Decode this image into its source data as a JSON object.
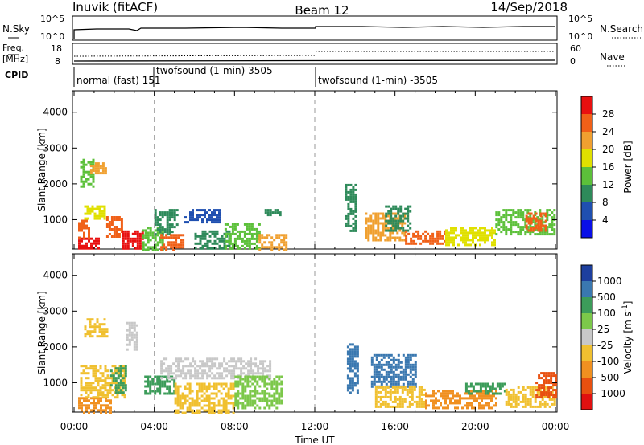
{
  "header": {
    "station": "Inuvik  (fitACF)",
    "beam": "Beam 12",
    "date": "14/Sep/2018"
  },
  "strips": {
    "nsky_label": "N.Sky",
    "nsky_ticks": [
      "10^5",
      "10^0"
    ],
    "nsearch_label": "N.Search",
    "nsearch_ticks": [
      "10^5",
      "10^0"
    ],
    "freq_label": "Freq.",
    "freq_unit": "[MHz]",
    "freq_ticks": [
      "18",
      "8"
    ],
    "nave_label": "Nave",
    "nave_ticks": [
      "60",
      "0"
    ],
    "cpid_label": "CPID"
  },
  "cpid_segments": [
    {
      "label": "normal (fast) 151",
      "start": "00:00",
      "end": "03:55"
    },
    {
      "label": "twofsound (1-min) 3505",
      "start": "03:55",
      "end": "11:55"
    },
    {
      "label": "twofsound (1-min) -3505",
      "start": "11:55",
      "end": "24:00"
    }
  ],
  "chart_data": [
    {
      "type": "heatmap",
      "title": "",
      "xlabel": "Time UT",
      "ylabel": "Slant Range [km]",
      "xlim": [
        0,
        24
      ],
      "ylim": [
        180,
        4600
      ],
      "x_tick_labels": [
        "00:00",
        "04:00",
        "08:00",
        "12:00",
        "16:00",
        "20:00",
        "00:00"
      ],
      "y_tick_labels": [
        "1000",
        "2000",
        "3000",
        "4000"
      ],
      "colorbar": {
        "label": "Power [dB]",
        "ticks": [
          "4",
          "8",
          "12",
          "16",
          "20",
          "24",
          "28"
        ],
        "colors": [
          "#0a10e8",
          "#1f4fb0",
          "#2e8a5a",
          "#5cc03a",
          "#e0e000",
          "#f0a030",
          "#f06018",
          "#e81010"
        ]
      },
      "regions": [
        {
          "t": [
            0.2,
            1.2
          ],
          "r": [
            180,
            500
          ],
          "level": 28
        },
        {
          "t": [
            0.2,
            0.8
          ],
          "r": [
            500,
            1000
          ],
          "level": 24
        },
        {
          "t": [
            0.5,
            1.5
          ],
          "r": [
            1000,
            1400
          ],
          "level": 16
        },
        {
          "t": [
            0.3,
            1.0
          ],
          "r": [
            1900,
            2700
          ],
          "level": 12
        },
        {
          "t": [
            0.8,
            1.6
          ],
          "r": [
            2300,
            2600
          ],
          "level": 20
        },
        {
          "t": [
            1.6,
            2.4
          ],
          "r": [
            500,
            1100
          ],
          "level": 24
        },
        {
          "t": [
            2.4,
            3.4
          ],
          "r": [
            180,
            700
          ],
          "level": 28
        },
        {
          "t": [
            3.4,
            4.4
          ],
          "r": [
            180,
            800
          ],
          "level": 12
        },
        {
          "t": [
            4.0,
            5.2
          ],
          "r": [
            600,
            1300
          ],
          "level": 8
        },
        {
          "t": [
            4.3,
            5.5
          ],
          "r": [
            180,
            600
          ],
          "level": 24
        },
        {
          "t": [
            5.5,
            7.3
          ],
          "r": [
            900,
            1300
          ],
          "level": 4
        },
        {
          "t": [
            6.0,
            7.8
          ],
          "r": [
            180,
            700
          ],
          "level": 8
        },
        {
          "t": [
            7.5,
            9.2
          ],
          "r": [
            180,
            900
          ],
          "level": 12
        },
        {
          "t": [
            9.2,
            10.6
          ],
          "r": [
            180,
            600
          ],
          "level": 20
        },
        {
          "t": [
            9.5,
            10.3
          ],
          "r": [
            1100,
            1300
          ],
          "level": 8
        },
        {
          "t": [
            13.5,
            14.1
          ],
          "r": [
            700,
            2000
          ],
          "level": 8
        },
        {
          "t": [
            14.5,
            16.5
          ],
          "r": [
            400,
            1200
          ],
          "level": 20
        },
        {
          "t": [
            15.5,
            16.8
          ],
          "r": [
            700,
            1400
          ],
          "level": 8
        },
        {
          "t": [
            16.5,
            18.5
          ],
          "r": [
            300,
            700
          ],
          "level": 24
        },
        {
          "t": [
            18.5,
            21.0
          ],
          "r": [
            300,
            800
          ],
          "level": 16
        },
        {
          "t": [
            21.0,
            24.0
          ],
          "r": [
            600,
            1300
          ],
          "level": 12
        },
        {
          "t": [
            22.5,
            23.5
          ],
          "r": [
            700,
            1200
          ],
          "level": 24
        }
      ]
    },
    {
      "type": "heatmap",
      "title": "",
      "xlabel": "Time UT",
      "ylabel": "Slant Range [km]",
      "xlim": [
        0,
        24
      ],
      "ylim": [
        180,
        4600
      ],
      "x_tick_labels": [
        "00:00",
        "04:00",
        "08:00",
        "12:00",
        "16:00",
        "20:00",
        "00:00"
      ],
      "y_tick_labels": [
        "1000",
        "2000",
        "3000",
        "4000"
      ],
      "colorbar": {
        "label": "Velocity [m s",
        "label_sup": "-1",
        "label_end": "]",
        "ticks": [
          "1000",
          "500",
          "100",
          "25",
          "-25",
          "-100",
          "-500",
          "-1000"
        ],
        "colors": [
          "#1d3f9e",
          "#3a78b0",
          "#3c9c5a",
          "#7cc84a",
          "#c8c8c8",
          "#f0c030",
          "#f09020",
          "#e85010",
          "#e01010"
        ]
      },
      "regions": [
        {
          "t": [
            0.2,
            1.8
          ],
          "r": [
            180,
            600
          ],
          "level": -500
        },
        {
          "t": [
            0.3,
            2.5
          ],
          "r": [
            600,
            1500
          ],
          "level": -100
        },
        {
          "t": [
            0.5,
            1.6
          ],
          "r": [
            2300,
            2800
          ],
          "level": -100
        },
        {
          "t": [
            1.8,
            2.6
          ],
          "r": [
            700,
            1500
          ],
          "level": 100
        },
        {
          "t": [
            2.6,
            3.2
          ],
          "r": [
            1900,
            2700
          ],
          "level": 0
        },
        {
          "t": [
            3.5,
            5.0
          ],
          "r": [
            700,
            1200
          ],
          "level": 100
        },
        {
          "t": [
            4.3,
            9.8
          ],
          "r": [
            1100,
            1700
          ],
          "level": 0
        },
        {
          "t": [
            5.0,
            8.0
          ],
          "r": [
            180,
            1000
          ],
          "level": -100
        },
        {
          "t": [
            8.0,
            10.4
          ],
          "r": [
            300,
            1200
          ],
          "level": 25
        },
        {
          "t": [
            13.6,
            14.2
          ],
          "r": [
            700,
            2100
          ],
          "level": 500
        },
        {
          "t": [
            14.8,
            17.0
          ],
          "r": [
            900,
            1800
          ],
          "level": 500
        },
        {
          "t": [
            15.0,
            17.5
          ],
          "r": [
            300,
            900
          ],
          "level": -100
        },
        {
          "t": [
            17.5,
            21.0
          ],
          "r": [
            300,
            800
          ],
          "level": -500
        },
        {
          "t": [
            19.5,
            21.5
          ],
          "r": [
            700,
            1000
          ],
          "level": 100
        },
        {
          "t": [
            21.5,
            24.0
          ],
          "r": [
            300,
            900
          ],
          "level": -100
        },
        {
          "t": [
            23.0,
            24.0
          ],
          "r": [
            600,
            1300
          ],
          "level": -1000
        }
      ]
    }
  ]
}
